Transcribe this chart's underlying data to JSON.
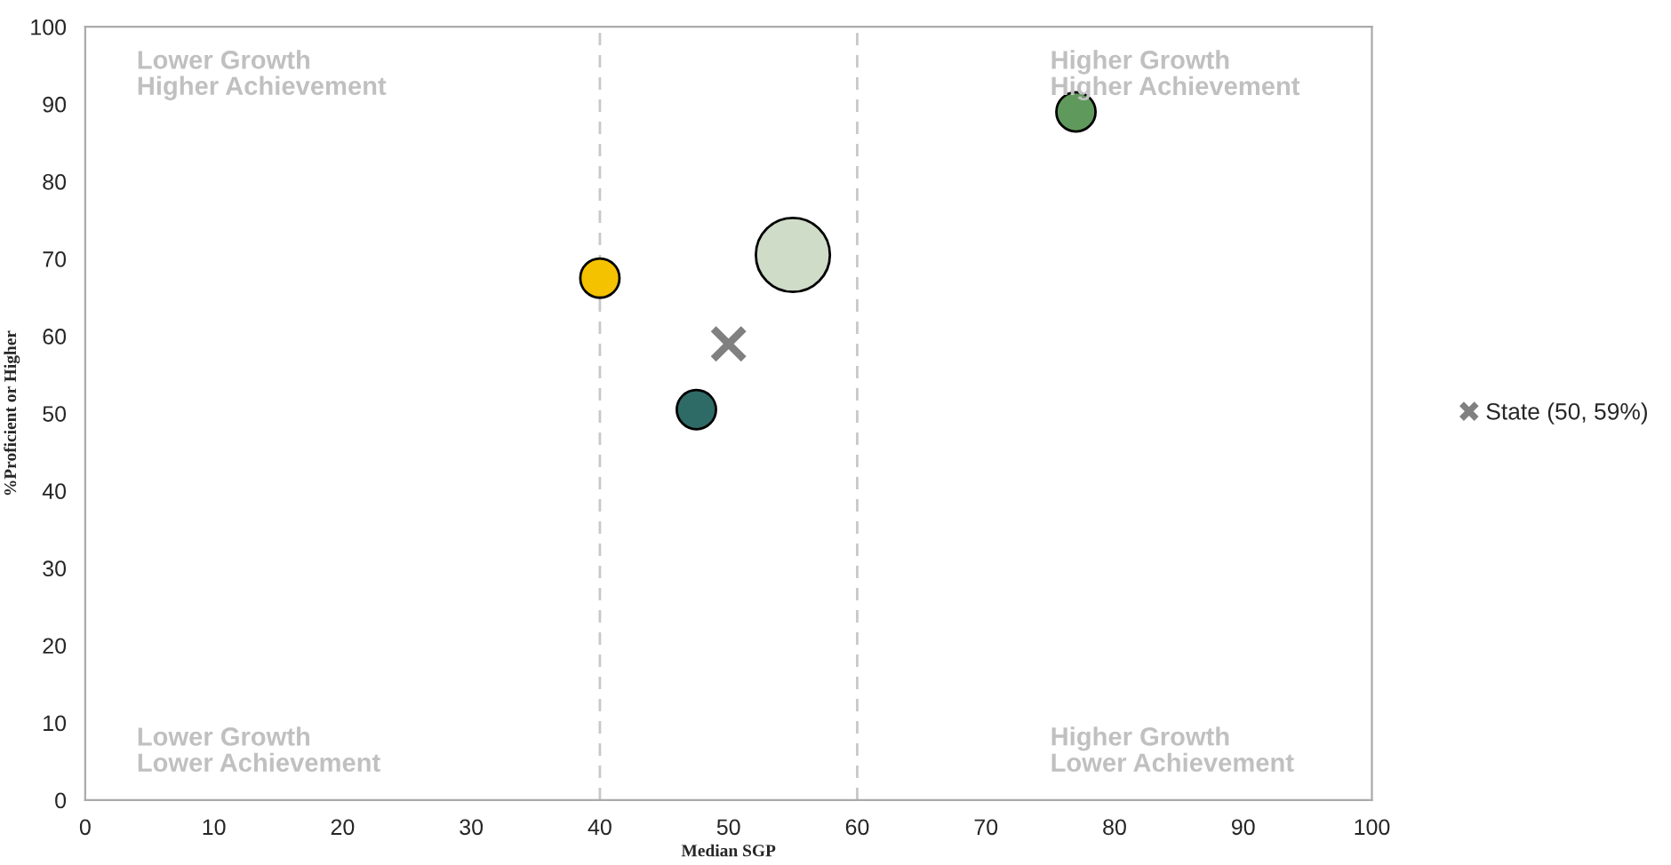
{
  "chart_data": {
    "type": "bubble",
    "xlabel": "Median SGP",
    "ylabel": "%Proficient or Higher",
    "xlim": [
      0,
      100
    ],
    "xticks": [
      0,
      10,
      20,
      30,
      40,
      50,
      60,
      70,
      80,
      90,
      100
    ],
    "ylim": [
      0,
      100
    ],
    "yticks": [
      0,
      10,
      20,
      30,
      40,
      50,
      60,
      70,
      80,
      90,
      100
    ],
    "grid": false,
    "legend": "right",
    "series": [
      {
        "x": [
          40,
          55,
          77,
          47.5
        ],
        "values": [
          67.5,
          70.5,
          89,
          50.5
        ],
        "sizes": [
          0.28,
          1,
          0.28,
          0.28
        ],
        "colors": [
          "#f5c200",
          "#cfdcc8",
          "#5f9a5c",
          "#2f6b66"
        ]
      },
      {
        "type": "scatter",
        "name": "State (50, 59%)",
        "x": [
          50
        ],
        "values": [
          59
        ],
        "color": "#808080",
        "marker": "cross"
      }
    ],
    "ref_lines": [
      {
        "axis": "x",
        "value": 40,
        "color": "#c8c8c8",
        "line_style": "dashed"
      },
      {
        "axis": "x",
        "value": 60,
        "color": "#c8c8c8",
        "line_style": "dashed"
      }
    ],
    "annotations": [
      "Lower Growth\nHigher Achievement",
      "Higher Growth\nHigher Achievement",
      "Lower Growth\nLower Achievement",
      "Higher Growth\nLower Achievement"
    ]
  }
}
